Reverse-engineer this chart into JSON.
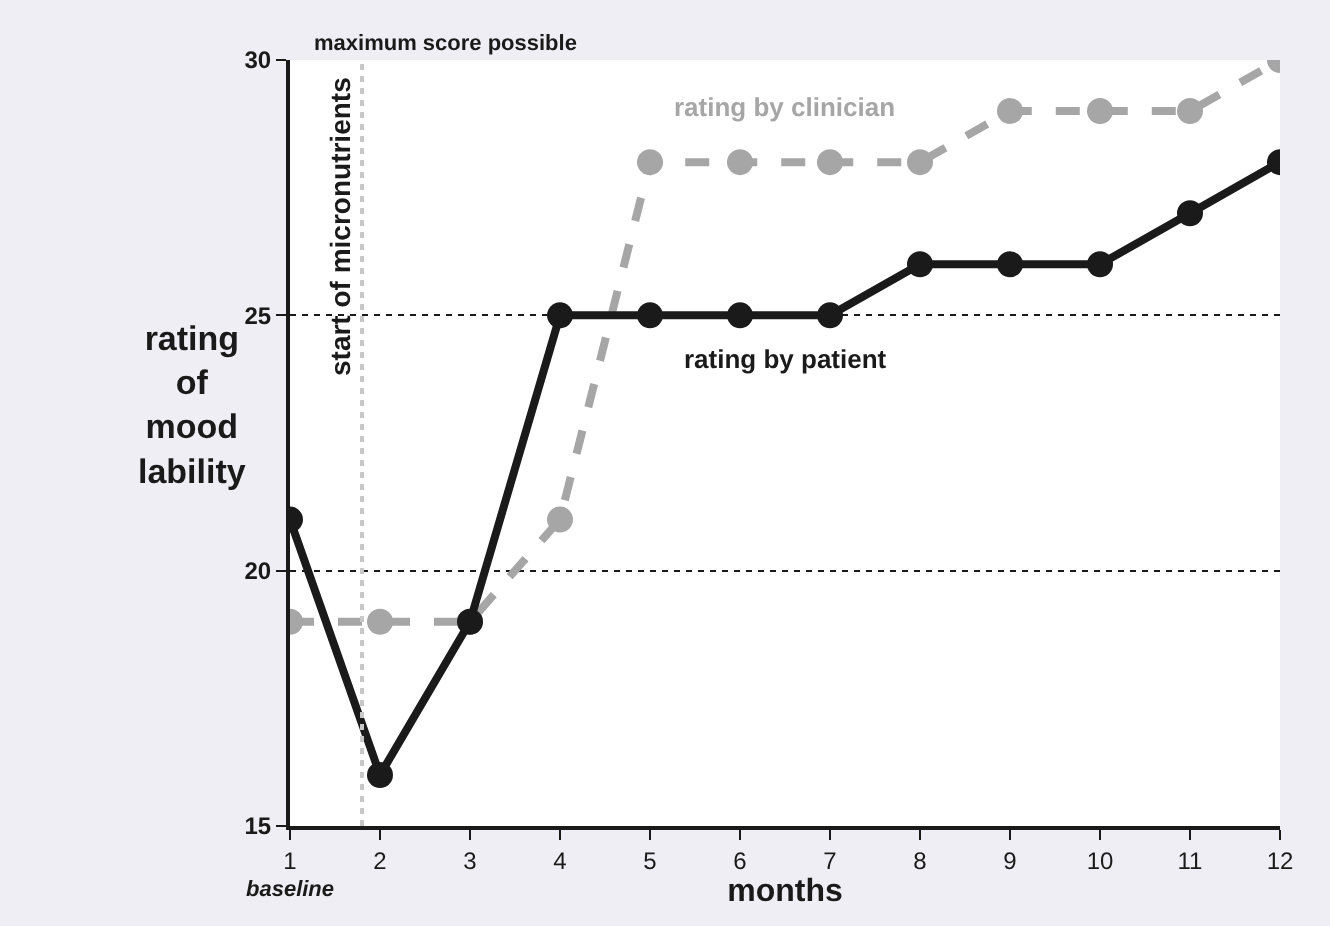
{
  "chart_data": {
    "type": "line",
    "xlabel": "months",
    "ylabel": "rating of mood lability",
    "x": [
      1,
      2,
      3,
      4,
      5,
      6,
      7,
      8,
      9,
      10,
      11,
      12
    ],
    "series": [
      {
        "name": "rating by patient",
        "color": "#1a1a1a",
        "values": [
          21,
          16,
          19,
          25,
          25,
          25,
          25,
          26,
          26,
          26,
          27,
          28
        ],
        "line_style": "solid"
      },
      {
        "name": "rating by clinician",
        "color": "#a6a6a6",
        "values": [
          19,
          19,
          19,
          21,
          28,
          28,
          28,
          28,
          29,
          29,
          29,
          30
        ],
        "line_style": "dashed"
      }
    ],
    "xlim": [
      1,
      12
    ],
    "xticks": [
      1,
      2,
      3,
      4,
      5,
      6,
      7,
      8,
      9,
      10,
      11,
      12
    ],
    "ylim": [
      15,
      30
    ],
    "yticks": [
      15,
      20,
      25,
      30
    ],
    "grid": "y",
    "legend": false,
    "marker": "circle",
    "ref_lines": [
      {
        "axis": "x",
        "value": 1.8,
        "label": "start of micronutrients",
        "color": "#c8c8c8",
        "line_style": "dotted"
      }
    ],
    "annotations": [
      "maximum score possible",
      "baseline"
    ]
  }
}
